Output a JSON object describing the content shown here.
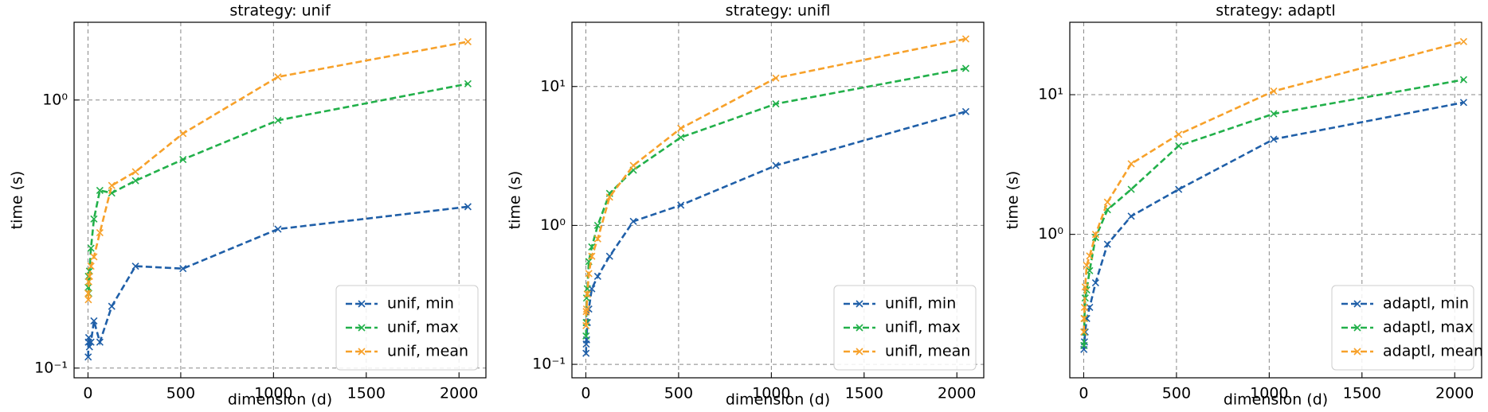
{
  "chart_data": [
    {
      "type": "line",
      "title": "strategy: unif",
      "x_label": "dimension (d)",
      "y_label": "time (s)",
      "x": [
        1,
        2,
        4,
        8,
        16,
        32,
        64,
        128,
        256,
        512,
        1024,
        2048
      ],
      "series": [
        {
          "name": "unif, min",
          "color": "#1f5fa8",
          "values": [
            0.11,
            0.125,
            0.13,
            0.12,
            0.125,
            0.15,
            0.125,
            0.17,
            0.24,
            0.235,
            0.33,
            0.4
          ]
        },
        {
          "name": "unif, max",
          "color": "#22b04a",
          "values": [
            0.2,
            0.22,
            0.19,
            0.23,
            0.28,
            0.36,
            0.46,
            0.45,
            0.5,
            0.6,
            0.84,
            1.15
          ]
        },
        {
          "name": "unif, mean",
          "color": "#f7a12a",
          "values": [
            0.19,
            0.18,
            0.21,
            0.22,
            0.24,
            0.26,
            0.32,
            0.48,
            0.54,
            0.75,
            1.22,
            1.65
          ]
        }
      ],
      "xlim": [
        -75,
        2145
      ],
      "ylim": [
        0.092,
        1.95
      ],
      "xticks": [
        0,
        500,
        1000,
        1500,
        2000
      ],
      "yticks": [
        {
          "value": 0.1,
          "label": "10⁻¹"
        },
        {
          "value": 1,
          "label": "10⁰"
        }
      ],
      "log_y": true,
      "grid": true,
      "legend": "lower right"
    },
    {
      "type": "line",
      "title": "strategy: unifl",
      "x_label": "dimension (d)",
      "y_label": "time (s)",
      "x": [
        1,
        2,
        4,
        8,
        16,
        32,
        64,
        128,
        256,
        512,
        1024,
        2048
      ],
      "series": [
        {
          "name": "unifl, min",
          "color": "#1f5fa8",
          "values": [
            0.12,
            0.14,
            0.15,
            0.2,
            0.25,
            0.35,
            0.43,
            0.6,
            1.07,
            1.4,
            2.7,
            6.6
          ]
        },
        {
          "name": "unifl, max",
          "color": "#22b04a",
          "values": [
            0.16,
            0.2,
            0.3,
            0.35,
            0.55,
            0.7,
            1.0,
            1.7,
            2.5,
            4.3,
            7.5,
            13.5
          ]
        },
        {
          "name": "unifl, mean",
          "color": "#f7a12a",
          "values": [
            0.19,
            0.24,
            0.25,
            0.32,
            0.45,
            0.6,
            0.8,
            1.6,
            2.7,
            5.0,
            11.5,
            22
          ]
        }
      ],
      "xlim": [
        -75,
        2145
      ],
      "ylim": [
        0.08,
        29
      ],
      "xticks": [
        0,
        500,
        1000,
        1500,
        2000
      ],
      "yticks": [
        {
          "value": 0.1,
          "label": "10⁻¹"
        },
        {
          "value": 1,
          "label": "10⁰"
        },
        {
          "value": 10,
          "label": "10¹"
        }
      ],
      "log_y": true,
      "grid": true,
      "legend": "lower right"
    },
    {
      "type": "line",
      "title": "strategy: adaptl",
      "x_label": "dimension (d)",
      "y_label": "time (s)",
      "x": [
        1,
        2,
        4,
        8,
        16,
        32,
        64,
        128,
        256,
        512,
        1024,
        2048
      ],
      "series": [
        {
          "name": "adaptl, min",
          "color": "#1f5fa8",
          "values": [
            0.15,
            0.16,
            0.17,
            0.2,
            0.25,
            0.3,
            0.45,
            0.85,
            1.35,
            2.1,
            4.8,
            8.8
          ]
        },
        {
          "name": "adaptl, max",
          "color": "#22b04a",
          "values": [
            0.16,
            0.2,
            0.25,
            0.35,
            0.4,
            0.55,
            0.95,
            1.5,
            2.1,
            4.3,
            7.3,
            12.8
          ]
        },
        {
          "name": "adaptl, mean",
          "color": "#f7a12a",
          "values": [
            0.2,
            0.25,
            0.3,
            0.42,
            0.6,
            0.7,
            1.0,
            1.7,
            3.2,
            5.2,
            10.6,
            24
          ]
        }
      ],
      "xlim": [
        -75,
        2145
      ],
      "ylim": [
        0.094,
        33
      ],
      "xticks": [
        0,
        500,
        1000,
        1500,
        2000
      ],
      "yticks": [
        {
          "value": 1,
          "label": "10⁰"
        },
        {
          "value": 10,
          "label": "10¹"
        }
      ],
      "log_y": true,
      "grid": true,
      "legend": "lower right"
    }
  ]
}
